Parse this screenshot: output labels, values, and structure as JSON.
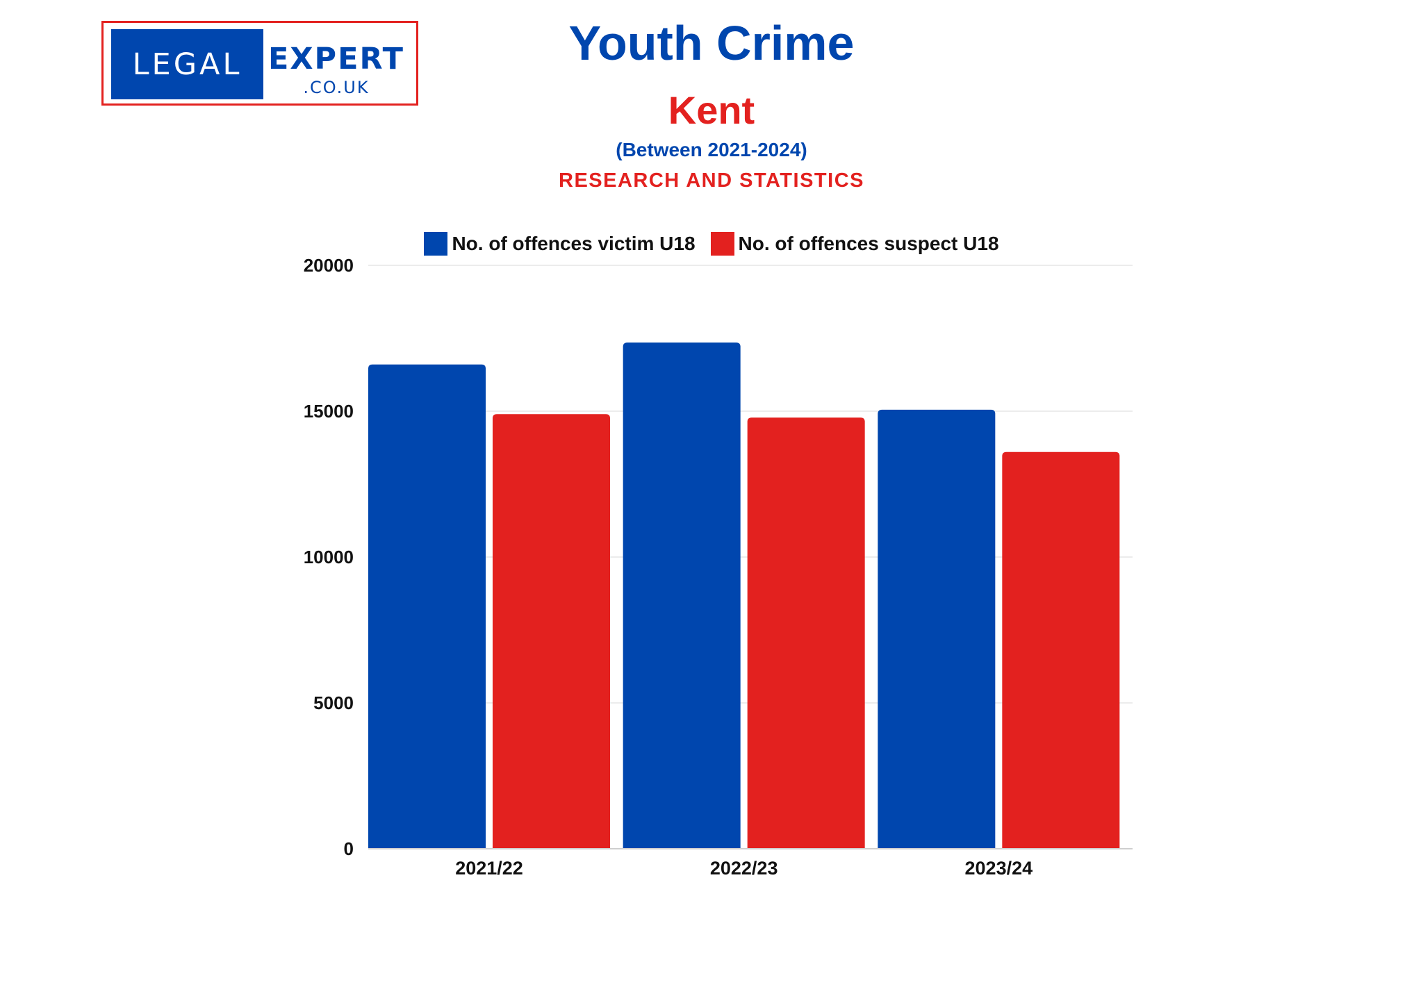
{
  "logo": {
    "left_text": "LEGAL",
    "right_text": "EXPERT",
    "domain_text": ".CO.UK"
  },
  "header": {
    "title": "Youth Crime",
    "subtitle": "Kent",
    "period": "(Between 2021-2024)",
    "tagline": "RESEARCH AND STATISTICS"
  },
  "colors": {
    "victim": "#0046ae",
    "suspect": "#e3211f",
    "grid": "#e6e6e6"
  },
  "chart_data": {
    "type": "bar",
    "categories": [
      "2021/22",
      "2022/23",
      "2023/24"
    ],
    "series": [
      {
        "name": "No. of offences victim U18",
        "values": [
          16600,
          17350,
          15050
        ]
      },
      {
        "name": "No. of offences suspect U18",
        "values": [
          14900,
          14780,
          13600
        ]
      }
    ],
    "yticks": [
      "0",
      "5000",
      "10000",
      "15000",
      "20000"
    ],
    "ylim": [
      0,
      20000
    ],
    "grid": true,
    "legend_position": "top"
  }
}
